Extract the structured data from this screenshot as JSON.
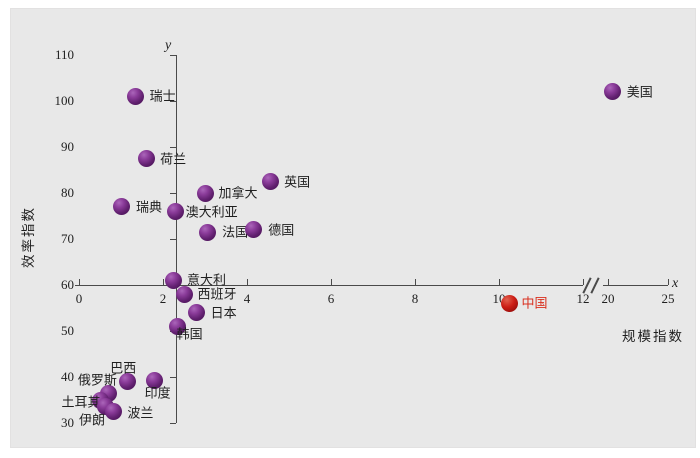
{
  "figure": {
    "y_axis_letter": "y",
    "x_axis_letter": "x"
  },
  "chart_data": {
    "type": "scatter",
    "title": "",
    "xlabel": "规模指数",
    "ylabel": "效率指数",
    "x_ticks": [
      0,
      2,
      4,
      6,
      8,
      10,
      12,
      20,
      25
    ],
    "y_ticks": [
      30,
      40,
      50,
      60,
      70,
      80,
      90,
      100,
      110
    ],
    "xlim": [
      0,
      25
    ],
    "ylim": [
      30,
      110
    ],
    "x_axis_break_between": [
      12,
      20
    ],
    "axes_cross_at": {
      "x": 2.3,
      "y": 60
    },
    "grid": "off",
    "legend": "none",
    "series": [
      {
        "name": "countries",
        "color": "#6a2376",
        "label_color": "#1f1f1f",
        "points": [
          {
            "label": "瑞士",
            "x": 1.35,
            "y": 101,
            "label_offset": [
              27,
              0
            ]
          },
          {
            "label": "荷兰",
            "x": 1.6,
            "y": 87.5,
            "label_offset": [
              27,
              0
            ]
          },
          {
            "label": "瑞典",
            "x": 1.0,
            "y": 77,
            "label_offset": [
              28,
              0
            ]
          },
          {
            "label": "加拿大",
            "x": 3.0,
            "y": 80,
            "label_offset": [
              33,
              0
            ]
          },
          {
            "label": "英国",
            "x": 4.55,
            "y": 82.5,
            "label_offset": [
              27,
              0
            ]
          },
          {
            "label": "澳大利亚",
            "x": 2.3,
            "y": 76,
            "label_offset": [
              36,
              1
            ]
          },
          {
            "label": "法国",
            "x": 3.05,
            "y": 71.5,
            "label_offset": [
              28,
              0
            ]
          },
          {
            "label": "德国",
            "x": 4.15,
            "y": 72,
            "label_offset": [
              28,
              0
            ]
          },
          {
            "label": "意大利",
            "x": 2.25,
            "y": 61,
            "label_offset": [
              33,
              0
            ]
          },
          {
            "label": "西班牙",
            "x": 2.5,
            "y": 58,
            "label_offset": [
              33,
              0
            ]
          },
          {
            "label": "日本",
            "x": 2.8,
            "y": 54,
            "label_offset": [
              27,
              0
            ]
          },
          {
            "label": "韩国",
            "x": 2.35,
            "y": 51,
            "label_offset": [
              12,
              8
            ]
          },
          {
            "label": "巴西",
            "x": 1.15,
            "y": 39,
            "label_offset": [
              -4,
              -14
            ]
          },
          {
            "label": "印度",
            "x": 1.8,
            "y": 39.2,
            "label_offset": [
              3,
              12
            ]
          },
          {
            "label": "俄罗斯",
            "x": 0.7,
            "y": 36.5,
            "label_offset": [
              -11,
              -13
            ]
          },
          {
            "label": "土耳其",
            "x": 0.5,
            "y": 35,
            "label_offset": [
              -19,
              2
            ]
          },
          {
            "label": "伊朗",
            "x": 0.62,
            "y": 33.5,
            "label_offset": [
              -13,
              13
            ]
          },
          {
            "label": "波兰",
            "x": 0.82,
            "y": 32.5,
            "label_offset": [
              27,
              1
            ]
          },
          {
            "label": "美国",
            "x": 20.4,
            "y": 102,
            "label_offset": [
              27,
              0
            ]
          }
        ]
      },
      {
        "name": "china-highlight",
        "color": "#c01616",
        "label_color": "#d9301f",
        "points": [
          {
            "label": "中国",
            "x": 10.25,
            "y": 56,
            "label_offset": [
              25,
              0
            ]
          }
        ]
      }
    ]
  }
}
